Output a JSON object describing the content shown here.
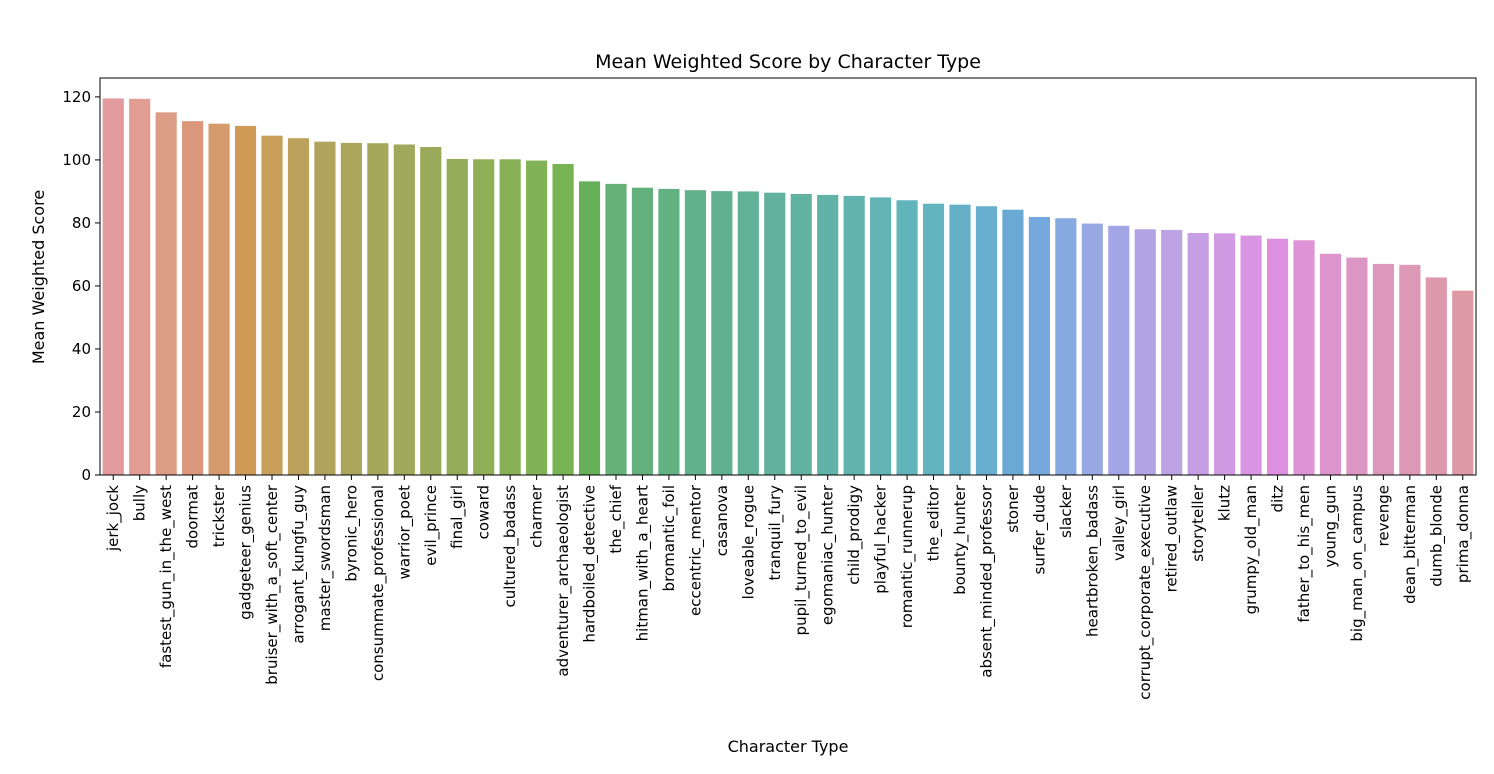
{
  "chart_data": {
    "type": "bar",
    "title": "Mean Weighted Score by Character Type",
    "xlabel": "Character Type",
    "ylabel": "Mean Weighted Score",
    "ylim": [
      0,
      126
    ],
    "yticks": [
      0,
      20,
      40,
      60,
      80,
      100,
      120
    ],
    "grid": false,
    "legend": "none",
    "categories": [
      "jerk_jock",
      "bully",
      "fastest_gun_in_the_west",
      "doormat",
      "trickster",
      "gadgeteer_genius",
      "bruiser_with_a_soft_center",
      "arrogant_kungfu_guy",
      "master_swordsman",
      "byronic_hero",
      "consummate_professional",
      "warrior_poet",
      "evil_prince",
      "final_girl",
      "coward",
      "cultured_badass",
      "charmer",
      "adventurer_archaeologist",
      "hardboiled_detective",
      "the_chief",
      "hitman_with_a_heart",
      "bromantic_foil",
      "eccentric_mentor",
      "casanova",
      "loveable_rogue",
      "tranquil_fury",
      "pupil_turned_to_evil",
      "egomaniac_hunter",
      "child_prodigy",
      "playful_hacker",
      "romantic_runnerup",
      "the_editor",
      "bounty_hunter",
      "absent_minded_professor",
      "stoner",
      "surfer_dude",
      "slacker",
      "heartbroken_badass",
      "valley_girl",
      "corrupt_corporate_executive",
      "retired_outlaw",
      "storyteller",
      "klutz",
      "grumpy_old_man",
      "ditz",
      "father_to_his_men",
      "young_gun",
      "big_man_on_campus",
      "revenge",
      "dean_bitterman",
      "dumb_blonde",
      "prima_donna"
    ],
    "values": [
      119.5,
      119.4,
      115.1,
      112.3,
      111.5,
      110.8,
      107.7,
      106.9,
      105.8,
      105.4,
      105.3,
      104.9,
      104.1,
      100.3,
      100.2,
      100.2,
      99.8,
      98.7,
      93.2,
      92.4,
      91.2,
      90.8,
      90.4,
      90.1,
      90.0,
      89.6,
      89.2,
      88.9,
      88.6,
      88.1,
      87.2,
      86.1,
      85.8,
      85.3,
      84.2,
      81.9,
      81.5,
      79.8,
      79.1,
      78.0,
      77.8,
      76.8,
      76.7,
      76.0,
      75.0,
      74.5,
      70.2,
      69.0,
      67.0,
      66.7,
      62.7,
      58.5
    ],
    "colors": [
      "#e29a9d",
      "#e19d92",
      "#dd9c86",
      "#da977b",
      "#d59b6a",
      "#cf9a56",
      "#c79f5b",
      "#bca15c",
      "#b1a35d",
      "#aba65c",
      "#a6a75b",
      "#a0a95b",
      "#9aaa5a",
      "#94ac59",
      "#8eae58",
      "#88b057",
      "#82b257",
      "#78b353",
      "#66b05a",
      "#64b077",
      "#63b07c",
      "#62b183",
      "#62b18a",
      "#61b190",
      "#61b196",
      "#61b19c",
      "#61b2a1",
      "#61b2a7",
      "#61b3ad",
      "#61b4b3",
      "#61b4ba",
      "#62b4c0",
      "#65b0c7",
      "#68aece",
      "#6ba9d5",
      "#75a8dc",
      "#85a9e0",
      "#98a8e3",
      "#a3a6e4",
      "#b2a4e4",
      "#bda2e4",
      "#c69ee4",
      "#d09be3",
      "#d895e2",
      "#dd8fe0",
      "#de93d6",
      "#dd94cd",
      "#dc96c4",
      "#dc97bc",
      "#dc98b4",
      "#dd98ac",
      "#de99a5"
    ]
  }
}
